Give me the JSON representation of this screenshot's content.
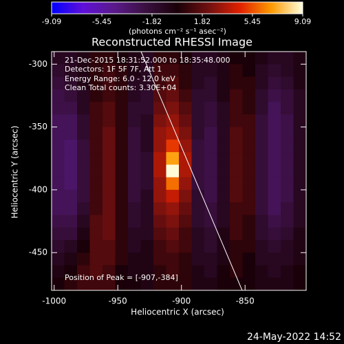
{
  "chart_data": {
    "type": "heatmap",
    "title": "Reconstructed RHESSI Image",
    "x_label": "Heliocentric X (arcsec)",
    "y_label": "Heliocentric Y (arcsec)",
    "colorbar_label": "(photons cm⁻² s⁻¹ asec⁻²)",
    "annotations": [
      "21-Dec-2015 18:31:52.000 to 18:35:48.000",
      "Detectors: 1F 5F 7F, Att 1",
      "Energy Range: 6.0 - 12.0 keV",
      "Clean    Total counts: 3.30E+04",
      "Position of Peak = [-907,-384]"
    ],
    "timestamp": "24-May-2022 14:52",
    "colorscale": [
      "#0000ff",
      "#6010d8",
      "#5a1a8a",
      "#3a1040",
      "#1a0008",
      "#701010",
      "#e02000",
      "#ff9a00",
      "#ffffe0"
    ],
    "zlim": [
      -9.09,
      9.09
    ],
    "zticks": [
      -9.09,
      -5.45,
      -1.82,
      1.82,
      5.45,
      9.09
    ],
    "xlim": [
      -1002,
      -802
    ],
    "xticks": [
      -1000,
      -950,
      -900,
      -850
    ],
    "ylim": [
      -480,
      -290
    ],
    "yticks": [
      -300,
      -350,
      -400,
      -450
    ],
    "x": [
      -997,
      -987,
      -977,
      -967,
      -957,
      -947,
      -937,
      -927,
      -917,
      -907,
      -897,
      -887,
      -877,
      -867,
      -857,
      -847,
      -837,
      -827,
      -817,
      -807
    ],
    "y": [
      -295,
      -305,
      -315,
      -325,
      -335,
      -345,
      -355,
      -365,
      -375,
      -385,
      -395,
      -405,
      -415,
      -425,
      -435,
      -445,
      -455,
      -465,
      -475
    ],
    "z": [
      [
        -1,
        -1,
        -0.5,
        0.5,
        0.5,
        0,
        -0.5,
        -1,
        0.5,
        0.5,
        0,
        -1,
        -1,
        -0.5,
        0,
        0,
        -0.5,
        -1,
        -1,
        -0.5
      ],
      [
        -1.5,
        -1,
        -0.5,
        0.5,
        1,
        0.5,
        -0.5,
        -1,
        1,
        1,
        0.5,
        -1,
        -1,
        -0.5,
        0.5,
        0,
        -1,
        -1.5,
        -1,
        -0.5
      ],
      [
        -2,
        -1.5,
        -0.5,
        0.5,
        1,
        0.5,
        -1,
        -1,
        1,
        1.5,
        0.5,
        -1,
        -1.5,
        -0.5,
        0.5,
        0.5,
        -1,
        -2,
        -1.5,
        -0.5
      ],
      [
        -2.5,
        -2,
        -1,
        0.5,
        1,
        0.5,
        -1,
        -1.5,
        1.5,
        2,
        1,
        -1.5,
        -1.5,
        -0.5,
        1,
        0.5,
        -1.5,
        -2.5,
        -2,
        -1
      ],
      [
        -2.5,
        -2.5,
        -1,
        1,
        1.5,
        0.5,
        -1.5,
        -1.5,
        2,
        2.5,
        1.5,
        -1.5,
        -2,
        -1,
        1,
        0.5,
        -1.5,
        -3,
        -2,
        -1
      ],
      [
        -3,
        -3,
        -1.5,
        1,
        1.5,
        0.5,
        -1.5,
        -1,
        2.5,
        3,
        2,
        -1.5,
        -2,
        -1,
        1,
        1,
        -2,
        -3,
        -2.5,
        -1
      ],
      [
        -3,
        -3,
        -1.5,
        1,
        2,
        0.5,
        -2,
        -1,
        3,
        3.5,
        2.5,
        -1.5,
        -2.5,
        -1,
        1.5,
        1,
        -2,
        -3,
        -2.5,
        -1
      ],
      [
        -3,
        -3.5,
        -2,
        1,
        2,
        0.5,
        -2,
        -1,
        3,
        5,
        3,
        -2,
        -2.5,
        -1,
        1.5,
        1,
        -2,
        -3,
        -2.5,
        -1
      ],
      [
        -3,
        -3.5,
        -2,
        1,
        2,
        0.5,
        -2,
        -1.5,
        3.5,
        7,
        3.5,
        -2,
        -2.5,
        -1,
        1.5,
        1,
        -2,
        -3,
        -2.5,
        -1
      ],
      [
        -3,
        -3.5,
        -2,
        1,
        2,
        0.5,
        -2,
        -1.5,
        3.5,
        9,
        3.5,
        -2,
        -2.5,
        -1,
        1.5,
        1,
        -2,
        -3,
        -2.5,
        -1
      ],
      [
        -3,
        -3.5,
        -2,
        1,
        2,
        0.5,
        -2,
        -1.5,
        3,
        6,
        3,
        -2,
        -2.5,
        -1,
        1.5,
        1,
        -2,
        -3,
        -2.5,
        -1
      ],
      [
        -3,
        -3,
        -2,
        1,
        2,
        0.5,
        -2,
        -1,
        3,
        4,
        2.5,
        -1.5,
        -2.5,
        -1,
        1.5,
        1,
        -2,
        -3,
        -2.5,
        -1
      ],
      [
        -3,
        -3,
        -1.5,
        1,
        2,
        0.5,
        -1.5,
        -1,
        2.5,
        3,
        2,
        -1.5,
        -2,
        -1,
        1,
        1,
        -2,
        -3,
        -2,
        -1
      ],
      [
        -2.5,
        -2.5,
        -1,
        1.5,
        2,
        0.5,
        -1.5,
        -1,
        2,
        2.5,
        1.5,
        -1.5,
        -2,
        -1,
        1,
        0.5,
        -1.5,
        -2.5,
        -2,
        -1
      ],
      [
        -2,
        -2,
        -0.5,
        1.5,
        2,
        0.5,
        -1,
        -1,
        1.5,
        2,
        1,
        -1,
        -1.5,
        -0.5,
        1,
        0.5,
        -1.5,
        -2,
        -1.5,
        -0.5
      ],
      [
        -1.5,
        -1,
        0,
        1.5,
        1.5,
        0.5,
        -1,
        -0.5,
        1,
        1.5,
        1,
        -1,
        -1.5,
        -0.5,
        0.5,
        0.5,
        -1,
        -1.5,
        -1,
        -0.5
      ],
      [
        -1,
        -0.5,
        0.5,
        1.5,
        1.5,
        0.5,
        -0.5,
        -0.5,
        1,
        1,
        0.5,
        -1,
        -1,
        -0.5,
        0.5,
        0,
        -1,
        -1,
        -1,
        -0.5
      ],
      [
        -0.5,
        0,
        1,
        1.5,
        1,
        0,
        -0.5,
        -0.5,
        0.5,
        1,
        0.5,
        -0.5,
        -1,
        0,
        0.5,
        0,
        -0.5,
        -1,
        -0.5,
        0
      ],
      [
        0,
        0.5,
        1,
        1,
        1,
        0,
        0,
        -0.5,
        0.5,
        0.5,
        0.5,
        -0.5,
        -0.5,
        0,
        0,
        0,
        -0.5,
        -0.5,
        -0.5,
        0
      ]
    ]
  }
}
